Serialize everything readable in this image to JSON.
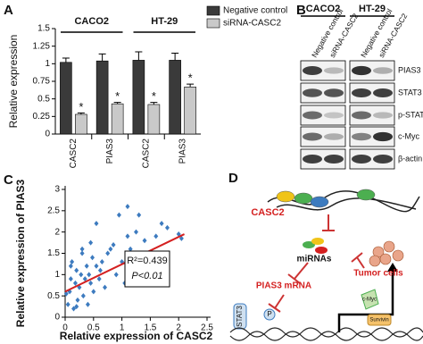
{
  "chart_data": [
    {
      "type": "bar",
      "panel": "A",
      "ylabel": "Relative expression",
      "groups": [
        {
          "name": "CACO2",
          "categories": [
            0,
            1
          ]
        },
        {
          "name": "HT-29",
          "categories": [
            2,
            3
          ]
        }
      ],
      "categories": [
        "CASC2",
        "PIAS3",
        "CASC2",
        "PIAS3"
      ],
      "series": [
        {
          "name": "Negative control",
          "color": "#3a3a3a",
          "values": [
            1.02,
            1.04,
            1.05,
            1.05
          ],
          "errors": [
            0.06,
            0.1,
            0.12,
            0.1
          ]
        },
        {
          "name": "siRNA-CASC2",
          "color": "#c9c9c9",
          "values": [
            0.28,
            0.43,
            0.42,
            0.67
          ],
          "errors": [
            0.02,
            0.02,
            0.03,
            0.04
          ],
          "annotations": [
            "*",
            "*",
            "*",
            "*"
          ]
        }
      ],
      "ylim": [
        0,
        1.5
      ],
      "yticks": [
        0,
        0.25,
        0.5,
        0.75,
        1,
        1.25,
        1.5
      ],
      "legend": "top-right"
    },
    {
      "type": "scatter",
      "panel": "C",
      "xlabel": "Relative expression of CASC2",
      "ylabel": "Relative expression of PIAS3",
      "color": "#3d7bbf",
      "x": [
        0.05,
        0.08,
        0.1,
        0.12,
        0.15,
        0.18,
        0.2,
        0.22,
        0.25,
        0.28,
        0.3,
        0.32,
        0.35,
        0.38,
        0.4,
        0.42,
        0.45,
        0.48,
        0.5,
        0.55,
        0.6,
        0.62,
        0.65,
        0.7,
        0.75,
        0.8,
        0.85,
        0.9,
        0.95,
        1.0,
        1.05,
        1.1,
        1.15,
        1.2,
        1.25,
        1.3,
        1.4,
        1.5,
        1.6,
        1.7,
        1.8,
        2.0,
        2.05,
        0.02,
        0.1,
        0.2,
        0.3,
        0.45,
        0.55,
        1.1
      ],
      "y": [
        0.3,
        0.6,
        0.9,
        1.3,
        0.2,
        0.8,
        1.1,
        0.4,
        0.7,
        1.0,
        1.5,
        0.5,
        0.9,
        1.2,
        0.3,
        1.0,
        0.8,
        1.4,
        0.6,
        1.2,
        0.9,
        1.1,
        1.3,
        0.7,
        1.5,
        1.6,
        1.7,
        1.0,
        2.4,
        1.3,
        0.8,
        1.9,
        1.6,
        1.2,
        2.0,
        2.4,
        1.8,
        1.3,
        1.9,
        2.2,
        2.1,
        1.95,
        1.85,
        0.55,
        1.2,
        0.25,
        1.6,
        1.75,
        2.2,
        2.6
      ],
      "fit": {
        "color": "#d42020",
        "x": [
          0,
          2.1
        ],
        "y": [
          0.6,
          1.95
        ]
      },
      "annotations": [
        "R²=0.439",
        "P<0.01"
      ],
      "xlim": [
        0,
        2.5
      ],
      "xticks": [
        0,
        0.5,
        1,
        1.5,
        2,
        2.5
      ],
      "ylim": [
        0,
        3
      ],
      "yticks": [
        0,
        0.5,
        1,
        1.5,
        2,
        2.5,
        3
      ]
    }
  ],
  "blot": {
    "panel": "B",
    "groups": [
      {
        "name": "CACO2",
        "lanes": [
          "Negative control",
          "siRNA-CASC2"
        ]
      },
      {
        "name": "HT-29",
        "lanes": [
          "Negative control",
          "siRNA-CASC2"
        ]
      }
    ],
    "rows": [
      "PIAS3",
      "STAT3",
      "p-STAT3",
      "c-Myc",
      "β-actin"
    ]
  },
  "diagram": {
    "panel": "D",
    "labels": [
      "CASC2",
      "miRNAs",
      "PIAS3 mRNA",
      "STAT3",
      "P",
      "Tumor cells",
      "c-Myc",
      "Survivin"
    ]
  }
}
